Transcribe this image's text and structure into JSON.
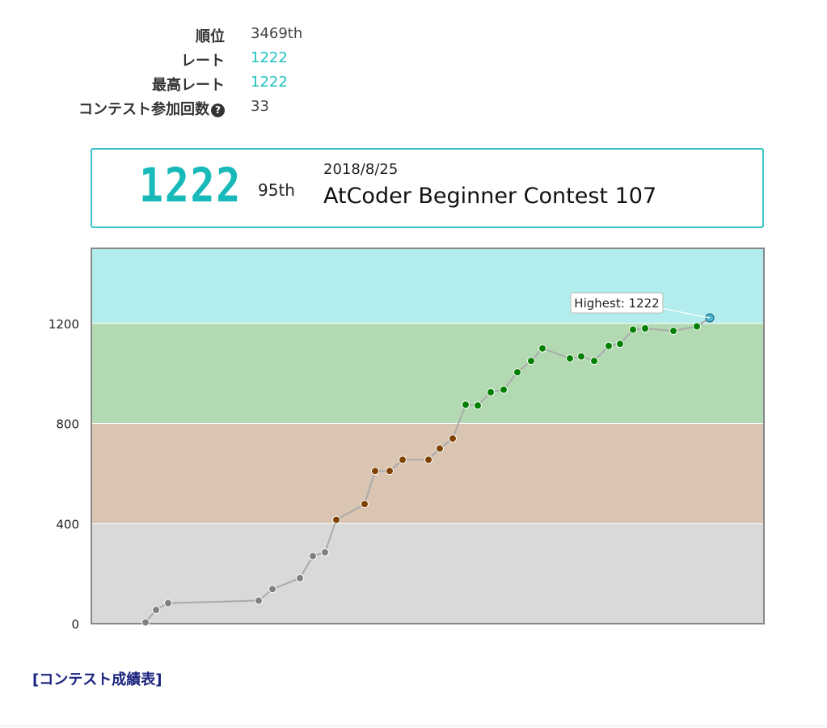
{
  "stats": [
    {
      "label": "順位",
      "value": "3469th",
      "teal": false,
      "help": false
    },
    {
      "label": "レート",
      "value": "1222",
      "teal": true,
      "help": false
    },
    {
      "label": "最高レート",
      "value": "1222",
      "teal": true,
      "help": false
    },
    {
      "label": "コンテスト参加回数",
      "value": "33",
      "teal": false,
      "help": true
    }
  ],
  "status": {
    "rating": "1222",
    "place": "95th",
    "date": "2018/8/25",
    "contest": "AtCoder Beginner Contest 107"
  },
  "link_text": "[コンテスト成績表]",
  "chart_data": {
    "type": "line",
    "title": "",
    "xlabel": "",
    "ylabel": "",
    "ylim": [
      0,
      1500
    ],
    "yticks": [
      "0",
      "400",
      "800",
      "1200"
    ],
    "grid": true,
    "bands": [
      {
        "from": 0,
        "to": 400,
        "color": "#d9d9d9",
        "point_color": "#808080"
      },
      {
        "from": 400,
        "to": 800,
        "color": "#d9c5b2",
        "point_color": "#804000"
      },
      {
        "from": 800,
        "to": 1200,
        "color": "#b2d9b2",
        "point_color": "#008000"
      },
      {
        "from": 1200,
        "to": 1500,
        "color": "#b2ecec",
        "point_color": "#00c0c0"
      }
    ],
    "series": [
      {
        "values": [
          5,
          55,
          82,
          92,
          138,
          182,
          270,
          285,
          415,
          478,
          610,
          610,
          655,
          655,
          700,
          740,
          875,
          872,
          925,
          935,
          1005,
          1050,
          1100,
          1060,
          1068,
          1050,
          1110,
          1118,
          1175,
          1180,
          1170,
          1188,
          1222
        ]
      }
    ],
    "annotation": "Highest: 1222"
  }
}
